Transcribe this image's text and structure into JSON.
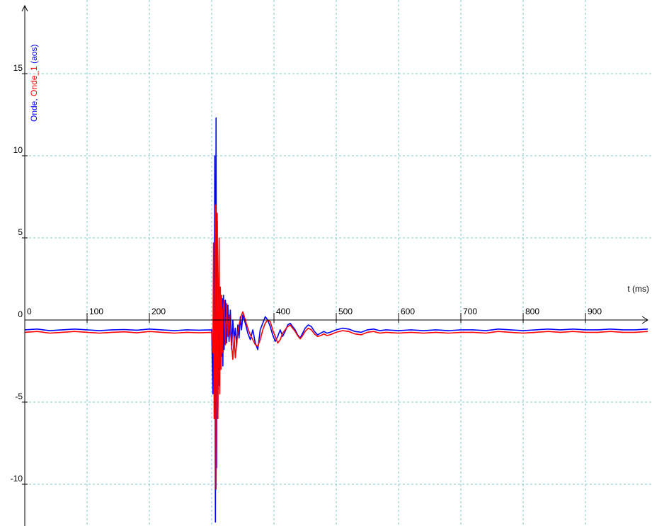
{
  "chart_data": {
    "type": "line",
    "x_unit_label": "t (ms)",
    "ylabel_parts": [
      {
        "text": "Onde",
        "color": "#0000ff"
      },
      {
        "text": ", ",
        "color": "#0000ff"
      },
      {
        "text": "Onde_1",
        "color": "#ff0000"
      },
      {
        "text": " (aos)",
        "color": "#0000ff"
      }
    ],
    "xlim": [
      0,
      1000
    ],
    "ylim": [
      -12.5,
      19
    ],
    "x_ticks": [
      0,
      100,
      200,
      400,
      500,
      600,
      700,
      800,
      900
    ],
    "x_grid": [
      100,
      200,
      300,
      400,
      500,
      600,
      700,
      800,
      900
    ],
    "y_ticks": [
      -10,
      -5,
      0,
      5,
      10,
      15
    ],
    "grid": true,
    "grid_color": "#7fc8c8",
    "series": [
      {
        "name": "Onde",
        "color": "#0000ff",
        "points": [
          [
            0,
            -0.6
          ],
          [
            20,
            -0.55
          ],
          [
            40,
            -0.65
          ],
          [
            60,
            -0.6
          ],
          [
            80,
            -0.55
          ],
          [
            100,
            -0.6
          ],
          [
            120,
            -0.65
          ],
          [
            140,
            -0.6
          ],
          [
            160,
            -0.58
          ],
          [
            180,
            -0.62
          ],
          [
            200,
            -0.55
          ],
          [
            220,
            -0.6
          ],
          [
            240,
            -0.65
          ],
          [
            260,
            -0.6
          ],
          [
            280,
            -0.62
          ],
          [
            300,
            -0.6
          ],
          [
            302,
            -4.5
          ],
          [
            303,
            3
          ],
          [
            304,
            -3
          ],
          [
            305,
            10
          ],
          [
            306,
            -12.3
          ],
          [
            307,
            12.3
          ],
          [
            308,
            -9
          ],
          [
            309,
            6
          ],
          [
            310,
            -5.5
          ],
          [
            311,
            2
          ],
          [
            312,
            -4
          ],
          [
            313,
            0.8
          ],
          [
            314,
            -3
          ],
          [
            315,
            1
          ],
          [
            316,
            -2.2
          ],
          [
            317,
            1.3
          ],
          [
            318,
            -2.8
          ],
          [
            319,
            1.5
          ],
          [
            320,
            -1.8
          ],
          [
            322,
            1.2
          ],
          [
            324,
            -1.4
          ],
          [
            326,
            0.9
          ],
          [
            328,
            -1.3
          ],
          [
            330,
            0.6
          ],
          [
            332,
            -1.8
          ],
          [
            334,
            0
          ],
          [
            336,
            -1.2
          ],
          [
            338,
            -0.5
          ],
          [
            340,
            -1.6
          ],
          [
            342,
            -0.3
          ],
          [
            344,
            -1.1
          ],
          [
            346,
            0.2
          ],
          [
            348,
            -0.6
          ],
          [
            350,
            0.3
          ],
          [
            354,
            -0.2
          ],
          [
            358,
            -0.8
          ],
          [
            362,
            -1.2
          ],
          [
            366,
            -0.6
          ],
          [
            370,
            -1.4
          ],
          [
            374,
            -1.8
          ],
          [
            378,
            -0.6
          ],
          [
            382,
            -0.2
          ],
          [
            386,
            0.2
          ],
          [
            390,
            0
          ],
          [
            394,
            -0.4
          ],
          [
            398,
            -0.9
          ],
          [
            402,
            -1.3
          ],
          [
            406,
            -1
          ],
          [
            410,
            -0.6
          ],
          [
            414,
            -1
          ],
          [
            418,
            -0.7
          ],
          [
            422,
            -0.3
          ],
          [
            426,
            -0.2
          ],
          [
            430,
            -0.4
          ],
          [
            434,
            -0.6
          ],
          [
            438,
            -0.9
          ],
          [
            442,
            -1.1
          ],
          [
            446,
            -0.8
          ],
          [
            450,
            -0.5
          ],
          [
            455,
            -0.3
          ],
          [
            460,
            -0.4
          ],
          [
            465,
            -0.7
          ],
          [
            470,
            -0.9
          ],
          [
            475,
            -0.8
          ],
          [
            480,
            -0.7
          ],
          [
            485,
            -0.8
          ],
          [
            490,
            -0.75
          ],
          [
            500,
            -0.6
          ],
          [
            510,
            -0.5
          ],
          [
            520,
            -0.55
          ],
          [
            530,
            -0.7
          ],
          [
            540,
            -0.75
          ],
          [
            550,
            -0.6
          ],
          [
            560,
            -0.55
          ],
          [
            570,
            -0.65
          ],
          [
            580,
            -0.6
          ],
          [
            600,
            -0.65
          ],
          [
            620,
            -0.6
          ],
          [
            640,
            -0.65
          ],
          [
            660,
            -0.6
          ],
          [
            680,
            -0.65
          ],
          [
            700,
            -0.6
          ],
          [
            720,
            -0.6
          ],
          [
            740,
            -0.65
          ],
          [
            760,
            -0.55
          ],
          [
            780,
            -0.6
          ],
          [
            800,
            -0.65
          ],
          [
            820,
            -0.6
          ],
          [
            840,
            -0.55
          ],
          [
            860,
            -0.6
          ],
          [
            880,
            -0.55
          ],
          [
            900,
            -0.6
          ],
          [
            920,
            -0.6
          ],
          [
            940,
            -0.55
          ],
          [
            960,
            -0.6
          ],
          [
            980,
            -0.6
          ],
          [
            1000,
            -0.55
          ]
        ]
      },
      {
        "name": "Onde_1",
        "color": "#ff0000",
        "points": [
          [
            0,
            -0.75
          ],
          [
            20,
            -0.7
          ],
          [
            40,
            -0.8
          ],
          [
            60,
            -0.75
          ],
          [
            80,
            -0.7
          ],
          [
            100,
            -0.75
          ],
          [
            120,
            -0.8
          ],
          [
            140,
            -0.75
          ],
          [
            160,
            -0.72
          ],
          [
            180,
            -0.78
          ],
          [
            200,
            -0.7
          ],
          [
            220,
            -0.75
          ],
          [
            240,
            -0.8
          ],
          [
            260,
            -0.75
          ],
          [
            280,
            -0.78
          ],
          [
            300,
            -0.75
          ],
          [
            302,
            -2
          ],
          [
            303,
            4.7
          ],
          [
            304,
            -6
          ],
          [
            305,
            -3
          ],
          [
            306,
            7
          ],
          [
            307,
            -10.3
          ],
          [
            308,
            -4
          ],
          [
            309,
            6.5
          ],
          [
            310,
            -6
          ],
          [
            311,
            2
          ],
          [
            312,
            5
          ],
          [
            313,
            -4.5
          ],
          [
            314,
            2
          ],
          [
            315,
            -3
          ],
          [
            316,
            1.5
          ],
          [
            317,
            -2
          ],
          [
            318,
            0.5
          ],
          [
            320,
            1.2
          ],
          [
            322,
            -1.5
          ],
          [
            324,
            1
          ],
          [
            326,
            -1
          ],
          [
            328,
            0.3
          ],
          [
            330,
            -0.7
          ],
          [
            332,
            -1.6
          ],
          [
            334,
            -2.4
          ],
          [
            336,
            -1
          ],
          [
            338,
            -2.3
          ],
          [
            340,
            -1.5
          ],
          [
            342,
            -0.7
          ],
          [
            344,
            -0.3
          ],
          [
            346,
            0
          ],
          [
            348,
            0.3
          ],
          [
            350,
            0.5
          ],
          [
            354,
            0
          ],
          [
            358,
            -0.5
          ],
          [
            362,
            -0.9
          ],
          [
            366,
            -1.2
          ],
          [
            370,
            -1.5
          ],
          [
            374,
            -1.6
          ],
          [
            378,
            -1.2
          ],
          [
            382,
            -0.6
          ],
          [
            386,
            -0.2
          ],
          [
            390,
            0
          ],
          [
            394,
            -0.1
          ],
          [
            398,
            -0.6
          ],
          [
            402,
            -1
          ],
          [
            406,
            -1.4
          ],
          [
            410,
            -1.2
          ],
          [
            414,
            -0.8
          ],
          [
            418,
            -0.6
          ],
          [
            422,
            -0.4
          ],
          [
            426,
            -0.3
          ],
          [
            430,
            -0.5
          ],
          [
            434,
            -0.7
          ],
          [
            438,
            -0.95
          ],
          [
            442,
            -1.15
          ],
          [
            446,
            -0.95
          ],
          [
            450,
            -0.7
          ],
          [
            455,
            -0.5
          ],
          [
            460,
            -0.6
          ],
          [
            465,
            -0.85
          ],
          [
            470,
            -1
          ],
          [
            475,
            -0.95
          ],
          [
            480,
            -0.85
          ],
          [
            485,
            -0.95
          ],
          [
            490,
            -0.9
          ],
          [
            500,
            -0.75
          ],
          [
            510,
            -0.65
          ],
          [
            520,
            -0.7
          ],
          [
            530,
            -0.85
          ],
          [
            540,
            -0.9
          ],
          [
            550,
            -0.75
          ],
          [
            560,
            -0.7
          ],
          [
            570,
            -0.8
          ],
          [
            580,
            -0.75
          ],
          [
            600,
            -0.8
          ],
          [
            620,
            -0.75
          ],
          [
            640,
            -0.8
          ],
          [
            660,
            -0.75
          ],
          [
            680,
            -0.8
          ],
          [
            700,
            -0.75
          ],
          [
            720,
            -0.75
          ],
          [
            740,
            -0.8
          ],
          [
            760,
            -0.7
          ],
          [
            780,
            -0.75
          ],
          [
            800,
            -0.8
          ],
          [
            820,
            -0.75
          ],
          [
            840,
            -0.7
          ],
          [
            860,
            -0.75
          ],
          [
            880,
            -0.7
          ],
          [
            900,
            -0.75
          ],
          [
            920,
            -0.75
          ],
          [
            940,
            -0.7
          ],
          [
            960,
            -0.75
          ],
          [
            980,
            -0.75
          ],
          [
            1000,
            -0.7
          ]
        ]
      }
    ]
  }
}
